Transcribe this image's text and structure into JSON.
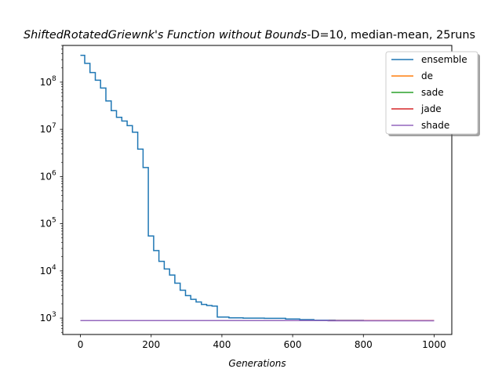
{
  "chart_data": {
    "type": "line",
    "title": {
      "italic_part": "ShiftedRotatedGriewnk's Function without Bounds",
      "rest": "-D=10, median-mean, 25runs"
    },
    "xlabel": "Generations",
    "ylabel": "",
    "xlim": [
      -50,
      1050
    ],
    "ylim": [
      450,
      600000000
    ],
    "yscale": "log",
    "grid": false,
    "legend_position": "top-right",
    "x_ticks": [
      0,
      200,
      400,
      600,
      800,
      1000
    ],
    "x_tick_labels": [
      "0",
      "200",
      "400",
      "600",
      "800",
      "1000"
    ],
    "y_ticks": [
      1000,
      10000,
      100000,
      1000000,
      10000000,
      100000000
    ],
    "y_tick_labels": [
      {
        "base": "10",
        "exp": "3"
      },
      {
        "base": "10",
        "exp": "4"
      },
      {
        "base": "10",
        "exp": "5"
      },
      {
        "base": "10",
        "exp": "6"
      },
      {
        "base": "10",
        "exp": "7"
      },
      {
        "base": "10",
        "exp": "8"
      }
    ],
    "series": [
      {
        "name": "ensemble",
        "color": "#1f77b4",
        "step": true,
        "points": [
          [
            0,
            370000000
          ],
          [
            12,
            250000000
          ],
          [
            27,
            160000000
          ],
          [
            42,
            110000000
          ],
          [
            57,
            75000000
          ],
          [
            72,
            40000000
          ],
          [
            87,
            25000000
          ],
          [
            102,
            18000000
          ],
          [
            117,
            15000000
          ],
          [
            132,
            12000000
          ],
          [
            147,
            8700000
          ],
          [
            162,
            3800000
          ],
          [
            177,
            1550000
          ],
          [
            192,
            55000
          ],
          [
            207,
            27000
          ],
          [
            222,
            16000
          ],
          [
            237,
            11000
          ],
          [
            252,
            8200
          ],
          [
            267,
            5500
          ],
          [
            282,
            3900
          ],
          [
            297,
            3000
          ],
          [
            312,
            2500
          ],
          [
            327,
            2200
          ],
          [
            342,
            1950
          ],
          [
            357,
            1850
          ],
          [
            372,
            1800
          ],
          [
            387,
            1050
          ],
          [
            420,
            1010
          ],
          [
            460,
            1000
          ],
          [
            520,
            990
          ],
          [
            580,
            960
          ],
          [
            620,
            930
          ],
          [
            660,
            905
          ],
          [
            720,
            895
          ],
          [
            800,
            890
          ],
          [
            900,
            890
          ],
          [
            1000,
            890
          ]
        ]
      },
      {
        "name": "de",
        "color": "#ff7f0e",
        "step": true,
        "points": [
          [
            0,
            890
          ],
          [
            600,
            890
          ],
          [
            1000,
            890
          ]
        ]
      },
      {
        "name": "sade",
        "color": "#2ca02c",
        "step": true,
        "points": [
          [
            0,
            890
          ],
          [
            600,
            890
          ],
          [
            1000,
            890
          ]
        ]
      },
      {
        "name": "jade",
        "color": "#d62728",
        "step": true,
        "points": [
          [
            0,
            890
          ],
          [
            600,
            890
          ],
          [
            1000,
            890
          ]
        ]
      },
      {
        "name": "shade",
        "color": "#9467bd",
        "step": true,
        "points": [
          [
            0,
            890
          ],
          [
            400,
            890
          ],
          [
            640,
            890
          ],
          [
            700,
            880
          ],
          [
            1000,
            880
          ]
        ]
      }
    ]
  }
}
